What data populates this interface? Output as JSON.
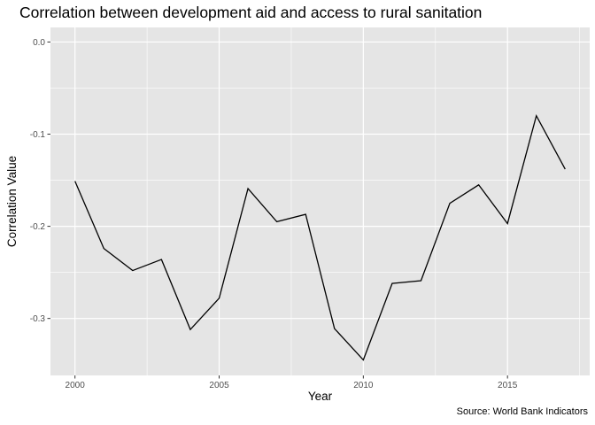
{
  "chart_data": {
    "type": "line",
    "title": "Correlation between development aid and access to rural sanitation",
    "xlabel": "Year",
    "ylabel": "Correlation Value",
    "caption": "Source: World Bank Indicators",
    "x": [
      2000,
      2001,
      2002,
      2003,
      2004,
      2005,
      2006,
      2007,
      2008,
      2009,
      2010,
      2011,
      2012,
      2013,
      2014,
      2015,
      2016,
      2017
    ],
    "series": [
      {
        "values": [
          -0.151,
          -0.224,
          -0.248,
          -0.236,
          -0.312,
          -0.278,
          -0.159,
          -0.195,
          -0.187,
          -0.311,
          -0.345,
          -0.262,
          -0.259,
          -0.175,
          -0.155,
          -0.197,
          -0.08,
          -0.138
        ],
        "color": "#000000"
      }
    ],
    "xlim": [
      1999.15,
      2017.85
    ],
    "ylim": [
      -0.3618,
      0.0158
    ],
    "x_ticks": [
      2000,
      2005,
      2010,
      2015
    ],
    "x_tick_labels": [
      "2000",
      "2005",
      "2010",
      "2015"
    ],
    "y_ticks": [
      0.0,
      -0.1,
      -0.2,
      -0.3
    ],
    "y_tick_labels": [
      "0.0",
      "-0.1",
      "-0.2",
      "-0.3"
    ],
    "grid": true,
    "panel_background": "#e5e5e5",
    "grid_color": "#ffffff"
  }
}
